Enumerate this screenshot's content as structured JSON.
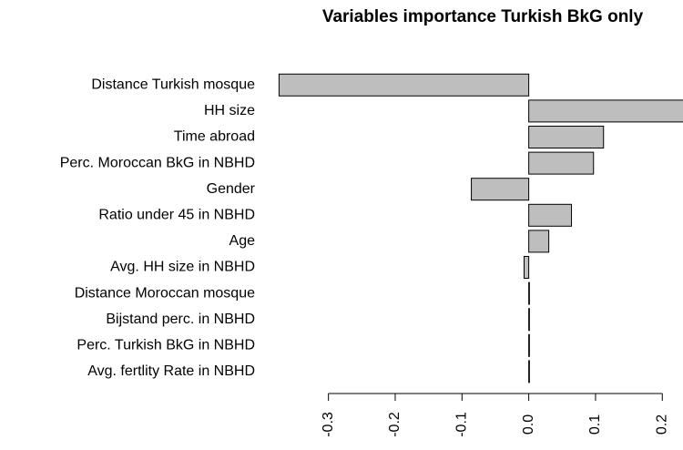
{
  "chart_data": {
    "type": "barh",
    "title": "Variables importance Turkish BkG only",
    "categories": [
      "Distance Turkish mosque",
      "HH size",
      "Time abroad",
      "Perc. Moroccan BkG in NBHD",
      "Gender",
      "Ratio under 45 in NBHD",
      "Age",
      "Avg. HH size in NBHD",
      "Distance Moroccan mosque",
      "Bijstand perc. in NBHD",
      "Perc. Turkish BkG in NBHD",
      "Avg. fertlity Rate in NBHD"
    ],
    "values": [
      -0.374,
      0.24,
      0.112,
      0.097,
      -0.086,
      0.064,
      0.03,
      -0.007,
      0.001,
      0.001,
      0.001,
      0.001
    ],
    "color": "#bebebe",
    "xlim": [
      -0.38,
      0.231
    ],
    "xticks": [
      -0.3,
      -0.2,
      -0.1,
      {
        "value": 0,
        "label": "0.0"
      },
      0.1,
      0.2
    ]
  }
}
